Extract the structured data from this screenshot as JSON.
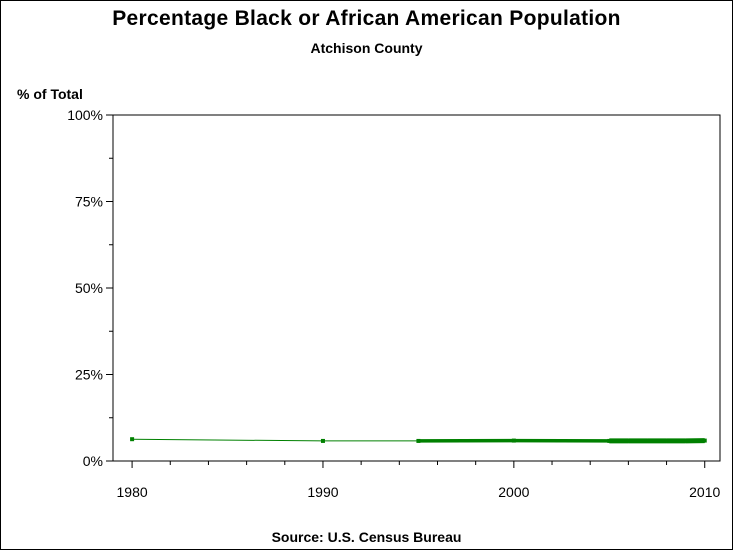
{
  "chart_data": {
    "type": "line",
    "title": "Percentage Black or African American Population",
    "subtitle": "Atchison County",
    "ylabel": "% of Total",
    "xlabel": "",
    "source": "Source: U.S. Census Bureau",
    "xlim": [
      1979,
      2010.8
    ],
    "ylim": [
      0,
      100
    ],
    "x_ticks": [
      1980,
      1990,
      2000,
      2010
    ],
    "x_tick_labels": [
      "1980",
      "1990",
      "2000",
      "2010"
    ],
    "x_minor_ticks": [
      1982,
      1984,
      1986,
      1988,
      1992,
      1994,
      1996,
      1998,
      2002,
      2004,
      2006,
      2008
    ],
    "y_ticks": [
      0,
      25,
      50,
      75,
      100
    ],
    "y_tick_labels": [
      "0%",
      "25%",
      "50%",
      "75%",
      "100%"
    ],
    "y_minor_ticks": [
      12.5,
      37.5,
      62.5,
      87.5
    ],
    "grid": false,
    "line_color": "#008000",
    "series": [
      {
        "x": [
          1980,
          1990,
          1995,
          2000,
          2005,
          2006,
          2007,
          2008,
          2009,
          2010
        ],
        "y": [
          6.3,
          5.8,
          5.8,
          5.9,
          5.8,
          5.8,
          5.8,
          5.8,
          5.8,
          5.9
        ]
      }
    ]
  }
}
